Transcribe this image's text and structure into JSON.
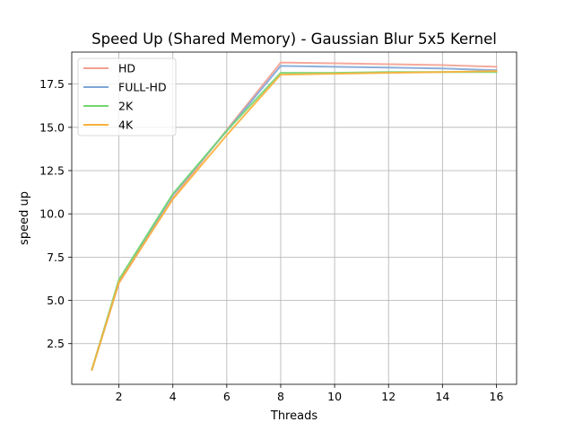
{
  "chart_data": {
    "type": "line",
    "title": "Speed Up (Shared Memory) - Gaussian Blur 5x5 Kernel",
    "xlabel": "Threads",
    "ylabel": "speed up",
    "x": [
      1,
      2,
      4,
      6,
      8,
      10,
      12,
      14,
      16
    ],
    "xlim": [
      0.25,
      16.75
    ],
    "ylim": [
      0.15,
      19.35
    ],
    "xticks": [
      2,
      4,
      6,
      8,
      10,
      12,
      14,
      16
    ],
    "yticks": [
      2.5,
      5.0,
      7.5,
      10.0,
      12.5,
      15.0,
      17.5
    ],
    "xtick_labels": [
      "2",
      "4",
      "6",
      "8",
      "10",
      "12",
      "14",
      "16"
    ],
    "ytick_labels": [
      "2.5",
      "5.0",
      "7.5",
      "10.0",
      "12.5",
      "15.0",
      "17.5"
    ],
    "grid": true,
    "legend_position": "upper-left",
    "series": [
      {
        "name": "HD",
        "color": "#f4a090",
        "values": [
          1.0,
          6.0,
          10.9,
          14.85,
          18.75,
          18.7,
          18.65,
          18.6,
          18.5
        ]
      },
      {
        "name": "FULL-HD",
        "color": "#7fa6d6",
        "values": [
          1.0,
          6.1,
          11.1,
          14.8,
          18.55,
          18.5,
          18.45,
          18.4,
          18.3
        ]
      },
      {
        "name": "2K",
        "color": "#72d672",
        "values": [
          1.0,
          6.2,
          11.15,
          14.8,
          18.15,
          18.15,
          18.2,
          18.2,
          18.2
        ]
      },
      {
        "name": "4K",
        "color": "#fbb03b",
        "values": [
          1.0,
          6.05,
          10.85,
          14.55,
          18.05,
          18.1,
          18.15,
          18.2,
          18.25
        ]
      }
    ]
  }
}
